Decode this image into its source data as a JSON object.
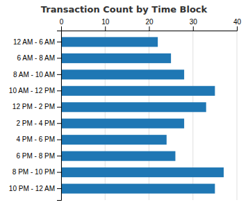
{
  "chart_data": {
    "type": "bar",
    "orientation": "horizontal",
    "title": "Transaction Count by Time Block",
    "categories": [
      "12 AM - 6 AM",
      "6 AM - 8 AM",
      "8 AM - 10 AM",
      "10 AM - 12 PM",
      "12 PM - 2 PM",
      "2 PM - 4 PM",
      "4 PM - 6 PM",
      "6 PM - 8 PM",
      "8 PM - 10 PM",
      "10 PM - 12 AM"
    ],
    "values": [
      22,
      25,
      28,
      35,
      33,
      28,
      24,
      26,
      37,
      35
    ],
    "xlim": [
      0,
      40
    ],
    "xticks": [
      0,
      10,
      20,
      30,
      40
    ],
    "grid": true
  }
}
